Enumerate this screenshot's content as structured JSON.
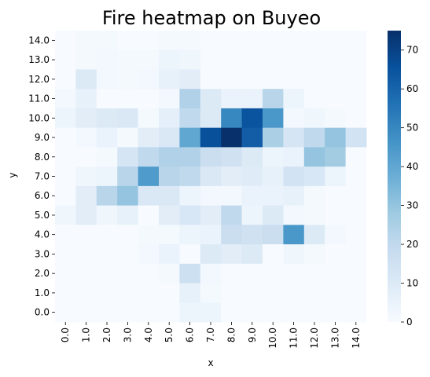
{
  "chart_data": {
    "type": "heatmap",
    "title": "Fire heatmap on Buyeo",
    "xlabel": "x",
    "ylabel": "y",
    "x_categories": [
      "0.0",
      "1.0",
      "2.0",
      "3.0",
      "4.0",
      "5.0",
      "6.0",
      "7.0",
      "8.0",
      "9.0",
      "10.0",
      "11.0",
      "12.0",
      "13.0",
      "14.0"
    ],
    "y_categories": [
      "14.0",
      "13.0",
      "12.0",
      "11.0",
      "10.0",
      "9.0",
      "8.0",
      "7.0",
      "6.0",
      "5.0",
      "4.0",
      "3.0",
      "2.0",
      "1.0",
      "0.0"
    ],
    "values": [
      [
        0,
        1,
        1,
        0,
        0,
        1,
        1,
        0,
        0,
        0,
        0,
        0,
        0,
        0,
        0
      ],
      [
        0,
        1,
        2,
        1,
        1,
        4,
        3,
        0,
        0,
        0,
        0,
        0,
        0,
        0,
        0
      ],
      [
        0,
        10,
        2,
        1,
        2,
        6,
        8,
        0,
        0,
        0,
        0,
        0,
        0,
        0,
        0
      ],
      [
        2,
        6,
        0,
        0,
        0,
        2,
        24,
        10,
        5,
        5,
        22,
        4,
        0,
        0,
        0
      ],
      [
        4,
        8,
        10,
        11,
        1,
        7,
        20,
        10,
        50,
        65,
        45,
        2,
        3,
        1,
        0
      ],
      [
        0,
        2,
        5,
        1,
        8,
        11,
        40,
        66,
        76,
        62,
        25,
        13,
        20,
        30,
        14
      ],
      [
        0,
        0,
        1,
        13,
        20,
        24,
        24,
        17,
        15,
        10,
        4,
        5,
        30,
        27,
        0
      ],
      [
        0,
        3,
        4,
        22,
        44,
        22,
        20,
        11,
        8,
        9,
        6,
        14,
        12,
        4,
        0
      ],
      [
        0,
        8,
        22,
        30,
        11,
        11,
        4,
        2,
        2,
        5,
        5,
        6,
        1,
        0,
        0
      ],
      [
        3,
        8,
        3,
        6,
        0,
        8,
        12,
        8,
        20,
        4,
        10,
        2,
        1,
        0,
        0
      ],
      [
        0,
        0,
        0,
        0,
        1,
        1,
        4,
        5,
        17,
        15,
        17,
        45,
        10,
        2,
        0
      ],
      [
        0,
        0,
        0,
        0,
        2,
        5,
        0,
        10,
        8,
        10,
        0,
        3,
        1,
        0,
        0
      ],
      [
        0,
        0,
        0,
        0,
        0,
        1,
        16,
        2,
        0,
        0,
        0,
        0,
        0,
        0,
        0
      ],
      [
        0,
        0,
        0,
        0,
        0,
        0,
        6,
        1,
        0,
        0,
        0,
        0,
        0,
        0,
        0
      ],
      [
        0,
        0,
        0,
        0,
        0,
        0,
        4,
        4,
        0,
        0,
        0,
        0,
        0,
        0,
        0
      ]
    ],
    "colorbar": {
      "min": 0,
      "max": 75,
      "ticks": [
        "0",
        "10",
        "20",
        "30",
        "40",
        "50",
        "60",
        "70"
      ],
      "colormap": "Blues"
    },
    "grid": false
  }
}
